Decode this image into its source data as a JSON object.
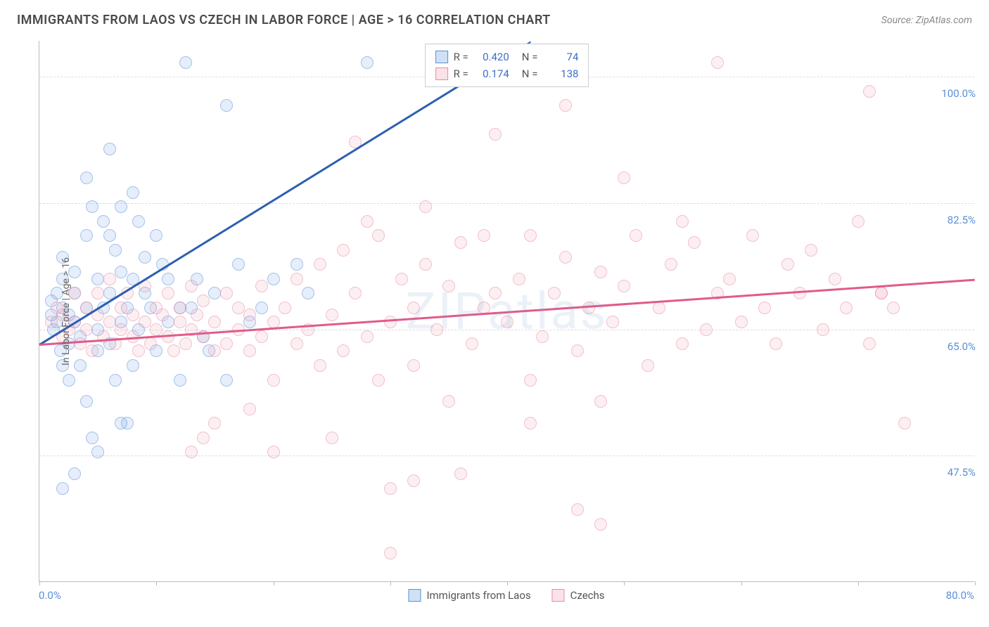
{
  "title": "IMMIGRANTS FROM LAOS VS CZECH IN LABOR FORCE | AGE > 16 CORRELATION CHART",
  "source": "Source: ZipAtlas.com",
  "watermark": "ZIPatlas",
  "yaxis_title": "In Labor Force | Age > 16",
  "chart": {
    "type": "scatter",
    "xlim": [
      0,
      80
    ],
    "ylim": [
      30,
      105
    ],
    "x_ticks": [
      0,
      10,
      20,
      30,
      40,
      50,
      60,
      70,
      80
    ],
    "x_label_min": "0.0%",
    "x_label_max": "80.0%",
    "y_gridlines": [
      47.5,
      65.0,
      82.5,
      100.0
    ],
    "y_labels": [
      "47.5%",
      "65.0%",
      "82.5%",
      "100.0%"
    ],
    "background_color": "#ffffff",
    "grid_color": "#dddddd",
    "axis_color": "#bbbbbb",
    "series": [
      {
        "name": "Immigrants from Laos",
        "color_fill": "rgba(120,170,230,0.35)",
        "color_stroke": "#5b8fd6",
        "r_label": "R =",
        "r_value": "0.420",
        "n_label": "N =",
        "n_value": "74",
        "trend": {
          "x1": 0,
          "y1": 63,
          "x2": 42,
          "y2": 105,
          "color": "#2e5fb0",
          "dash_after_x": 36
        },
        "points": [
          [
            1,
            67
          ],
          [
            1,
            69
          ],
          [
            1.2,
            65
          ],
          [
            1.5,
            70
          ],
          [
            1.5,
            66
          ],
          [
            1.8,
            62
          ],
          [
            2,
            68
          ],
          [
            2,
            72
          ],
          [
            2,
            60
          ],
          [
            2,
            75
          ],
          [
            2.5,
            63
          ],
          [
            2.5,
            67
          ],
          [
            2.5,
            58
          ],
          [
            3,
            70
          ],
          [
            3,
            66
          ],
          [
            3,
            73
          ],
          [
            3.5,
            60
          ],
          [
            3.5,
            64
          ],
          [
            4,
            68
          ],
          [
            4,
            55
          ],
          [
            4,
            78
          ],
          [
            4.5,
            82
          ],
          [
            4.5,
            50
          ],
          [
            5,
            65
          ],
          [
            5,
            72
          ],
          [
            5,
            62
          ],
          [
            5.5,
            80
          ],
          [
            5.5,
            68
          ],
          [
            6,
            78
          ],
          [
            6,
            63
          ],
          [
            6,
            70
          ],
          [
            6.5,
            58
          ],
          [
            6.5,
            76
          ],
          [
            7,
            73
          ],
          [
            7,
            66
          ],
          [
            7,
            82
          ],
          [
            7.5,
            52
          ],
          [
            7.5,
            68
          ],
          [
            8,
            72
          ],
          [
            8,
            60
          ],
          [
            8.5,
            80
          ],
          [
            8.5,
            65
          ],
          [
            9,
            75
          ],
          [
            9,
            70
          ],
          [
            9.5,
            68
          ],
          [
            10,
            78
          ],
          [
            10,
            62
          ],
          [
            10.5,
            74
          ],
          [
            11,
            72
          ],
          [
            11,
            66
          ],
          [
            12,
            68
          ],
          [
            12,
            58
          ],
          [
            12.5,
            102
          ],
          [
            2,
            43
          ],
          [
            3,
            45
          ],
          [
            5,
            48
          ],
          [
            7,
            52
          ],
          [
            4,
            86
          ],
          [
            6,
            90
          ],
          [
            8,
            84
          ],
          [
            13,
            68
          ],
          [
            13.5,
            72
          ],
          [
            14,
            64
          ],
          [
            15,
            70
          ],
          [
            16,
            96
          ],
          [
            17,
            74
          ],
          [
            18,
            66
          ],
          [
            19,
            68
          ],
          [
            14.5,
            62
          ],
          [
            16,
            58
          ],
          [
            28,
            102
          ],
          [
            20,
            72
          ],
          [
            22,
            74
          ],
          [
            23,
            70
          ]
        ]
      },
      {
        "name": "Czechs",
        "color_fill": "rgba(240,160,180,0.30)",
        "color_stroke": "#e88ba5",
        "r_label": "R =",
        "r_value": "0.174",
        "n_label": "N =",
        "n_value": "138",
        "trend": {
          "x1": 0,
          "y1": 63,
          "x2": 80,
          "y2": 72,
          "color": "#e15a8a",
          "dash_after_x": 80
        },
        "points": [
          [
            1,
            66
          ],
          [
            1.5,
            68
          ],
          [
            2,
            67
          ],
          [
            2,
            64
          ],
          [
            2.5,
            65
          ],
          [
            3,
            66
          ],
          [
            3,
            70
          ],
          [
            3.5,
            63
          ],
          [
            4,
            68
          ],
          [
            4,
            65
          ],
          [
            4.5,
            62
          ],
          [
            5,
            67
          ],
          [
            5,
            70
          ],
          [
            5.5,
            64
          ],
          [
            6,
            66
          ],
          [
            6,
            72
          ],
          [
            6.5,
            63
          ],
          [
            7,
            68
          ],
          [
            7,
            65
          ],
          [
            7.5,
            70
          ],
          [
            8,
            64
          ],
          [
            8,
            67
          ],
          [
            8.5,
            62
          ],
          [
            9,
            66
          ],
          [
            9,
            71
          ],
          [
            9.5,
            63
          ],
          [
            10,
            68
          ],
          [
            10,
            65
          ],
          [
            10.5,
            67
          ],
          [
            11,
            64
          ],
          [
            11,
            70
          ],
          [
            11.5,
            62
          ],
          [
            12,
            66
          ],
          [
            12,
            68
          ],
          [
            12.5,
            63
          ],
          [
            13,
            71
          ],
          [
            13,
            65
          ],
          [
            13.5,
            67
          ],
          [
            14,
            64
          ],
          [
            14,
            69
          ],
          [
            15,
            62
          ],
          [
            15,
            66
          ],
          [
            16,
            70
          ],
          [
            16,
            63
          ],
          [
            17,
            68
          ],
          [
            17,
            65
          ],
          [
            18,
            67
          ],
          [
            18,
            62
          ],
          [
            19,
            71
          ],
          [
            19,
            64
          ],
          [
            20,
            66
          ],
          [
            20,
            58
          ],
          [
            21,
            68
          ],
          [
            22,
            63
          ],
          [
            22,
            72
          ],
          [
            23,
            65
          ],
          [
            24,
            74
          ],
          [
            24,
            60
          ],
          [
            25,
            67
          ],
          [
            26,
            76
          ],
          [
            26,
            62
          ],
          [
            27,
            70
          ],
          [
            27,
            91
          ],
          [
            28,
            64
          ],
          [
            29,
            78
          ],
          [
            29,
            58
          ],
          [
            30,
            66
          ],
          [
            31,
            72
          ],
          [
            32,
            68
          ],
          [
            32,
            60
          ],
          [
            33,
            74
          ],
          [
            34,
            65
          ],
          [
            35,
            71
          ],
          [
            35,
            55
          ],
          [
            36,
            77
          ],
          [
            37,
            63
          ],
          [
            38,
            68
          ],
          [
            39,
            92
          ],
          [
            39,
            70
          ],
          [
            40,
            66
          ],
          [
            41,
            72
          ],
          [
            42,
            78
          ],
          [
            42,
            58
          ],
          [
            43,
            64
          ],
          [
            44,
            70
          ],
          [
            45,
            75
          ],
          [
            46,
            62
          ],
          [
            47,
            68
          ],
          [
            48,
            73
          ],
          [
            48,
            55
          ],
          [
            49,
            66
          ],
          [
            50,
            71
          ],
          [
            51,
            78
          ],
          [
            52,
            60
          ],
          [
            53,
            68
          ],
          [
            54,
            74
          ],
          [
            55,
            63
          ],
          [
            56,
            77
          ],
          [
            57,
            65
          ],
          [
            58,
            70
          ],
          [
            59,
            72
          ],
          [
            60,
            66
          ],
          [
            61,
            78
          ],
          [
            62,
            68
          ],
          [
            63,
            63
          ],
          [
            64,
            74
          ],
          [
            65,
            70
          ],
          [
            66,
            76
          ],
          [
            67,
            65
          ],
          [
            68,
            72
          ],
          [
            69,
            68
          ],
          [
            70,
            80
          ],
          [
            71,
            63
          ],
          [
            72,
            70
          ],
          [
            73,
            68
          ],
          [
            74,
            52
          ],
          [
            58,
            102
          ],
          [
            48,
            38
          ],
          [
            46,
            40
          ],
          [
            32,
            44
          ],
          [
            30,
            43
          ],
          [
            36,
            45
          ],
          [
            30,
            34
          ],
          [
            20,
            48
          ],
          [
            25,
            50
          ],
          [
            15,
            52
          ],
          [
            18,
            54
          ],
          [
            14,
            50
          ],
          [
            13,
            48
          ],
          [
            42,
            52
          ],
          [
            45,
            96
          ],
          [
            50,
            86
          ],
          [
            55,
            80
          ],
          [
            28,
            80
          ],
          [
            33,
            82
          ],
          [
            38,
            78
          ],
          [
            71,
            98
          ],
          [
            72,
            70
          ]
        ]
      }
    ],
    "legend_bottom": [
      {
        "swatch_fill": "rgba(120,170,230,0.35)",
        "swatch_stroke": "#5b8fd6",
        "label": "Immigrants from Laos"
      },
      {
        "swatch_fill": "rgba(240,160,180,0.30)",
        "swatch_stroke": "#e88ba5",
        "label": "Czechs"
      }
    ]
  }
}
